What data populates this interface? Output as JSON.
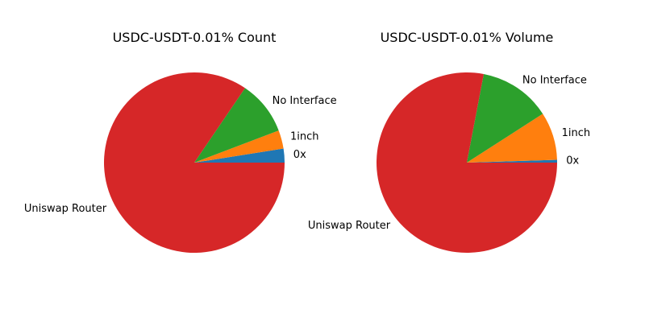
{
  "chart_data": [
    {
      "type": "pie",
      "title": "USDC-USDT-0.01% Count",
      "slices": [
        {
          "label": "0x",
          "value": 2.5,
          "color": "#1f77b4"
        },
        {
          "label": "1inch",
          "value": 3.3,
          "color": "#ff7f0e"
        },
        {
          "label": "No Interface",
          "value": 9.7,
          "color": "#2ca02c"
        },
        {
          "label": "Uniswap Router",
          "value": 84.5,
          "color": "#d62728"
        }
      ]
    },
    {
      "type": "pie",
      "title": "USDC-USDT-0.01% Volume",
      "slices": [
        {
          "label": "0x",
          "value": 0.5,
          "color": "#1f77b4"
        },
        {
          "label": "1inch",
          "value": 8.6,
          "color": "#ff7f0e"
        },
        {
          "label": "No Interface",
          "value": 12.9,
          "color": "#2ca02c"
        },
        {
          "label": "Uniswap Router",
          "value": 78.0,
          "color": "#d62728"
        }
      ]
    }
  ]
}
